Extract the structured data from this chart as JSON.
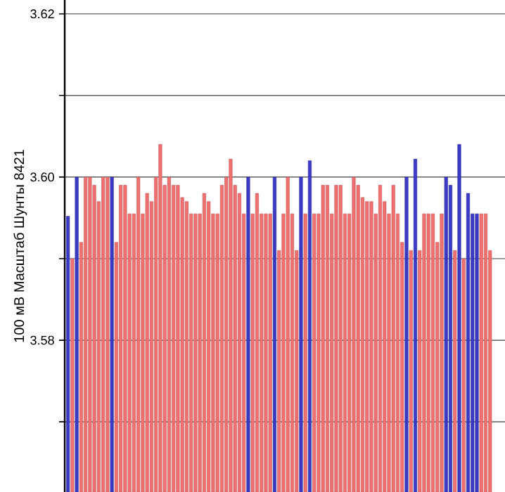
{
  "chart_data": {
    "type": "bar",
    "ylabel": "100 мВ Масштаб  Шунты 8421",
    "categories": [
      null,
      null,
      null,
      null,
      null,
      null,
      null,
      null,
      null,
      null,
      null,
      null,
      null,
      null,
      null,
      null,
      null,
      null,
      null,
      null,
      null,
      null,
      null,
      null,
      null,
      null,
      null,
      null,
      null,
      null,
      null,
      null,
      null,
      null,
      null,
      null,
      null,
      null,
      null,
      null,
      null,
      null,
      null,
      null,
      null,
      null,
      null,
      null,
      null,
      null,
      null,
      null,
      null,
      null,
      null,
      null,
      null,
      null,
      null,
      null,
      null,
      null,
      null,
      null,
      null,
      null,
      null,
      null,
      null,
      null,
      null,
      null,
      null,
      null,
      null,
      null,
      null,
      null,
      null,
      null,
      null,
      null,
      null,
      null,
      null,
      null,
      null,
      null,
      null,
      null,
      null,
      null,
      null,
      null,
      null,
      null,
      null
    ],
    "values": [
      3.5952,
      3.59,
      3.6,
      3.592,
      3.6,
      3.6,
      3.599,
      3.597,
      3.6,
      3.6,
      3.6,
      3.592,
      3.599,
      3.599,
      3.5955,
      3.5955,
      3.6,
      3.5955,
      3.598,
      3.597,
      3.6,
      3.604,
      3.599,
      3.6,
      3.599,
      3.599,
      3.5975,
      3.597,
      3.5955,
      3.5955,
      3.5955,
      3.598,
      3.597,
      3.5955,
      3.5955,
      3.599,
      3.6,
      3.6022,
      3.599,
      3.598,
      3.5955,
      3.6,
      3.5955,
      3.598,
      3.5955,
      3.5955,
      3.5955,
      3.6,
      3.591,
      3.5955,
      3.6,
      3.5955,
      3.591,
      3.6,
      3.5955,
      3.602,
      3.5955,
      3.5955,
      3.599,
      3.599,
      3.5955,
      3.599,
      3.599,
      3.5955,
      3.5955,
      3.6,
      3.599,
      3.5975,
      3.597,
      3.597,
      3.5955,
      3.599,
      3.597,
      3.5955,
      3.599,
      3.5955,
      3.592,
      3.6,
      3.591,
      3.6022,
      3.591,
      3.5955,
      3.5955,
      3.5955,
      3.592,
      3.5955,
      3.6,
      3.599,
      3.591,
      3.604,
      3.59,
      3.598,
      3.5955,
      3.5955,
      3.5955,
      3.5955,
      3.591
    ],
    "colors": [
      "#3a3ac4",
      "#f07070",
      "#3a3ac4",
      "#f07070",
      "#f07070",
      "#f07070",
      "#f07070",
      "#f07070",
      "#f07070",
      "#f07070",
      "#3a3ac4",
      "#f07070",
      "#f07070",
      "#f07070",
      "#f07070",
      "#f07070",
      "#f07070",
      "#f07070",
      "#f07070",
      "#f07070",
      "#f07070",
      "#f07070",
      "#f07070",
      "#f07070",
      "#f07070",
      "#f07070",
      "#f07070",
      "#f07070",
      "#f07070",
      "#f07070",
      "#f07070",
      "#f07070",
      "#f07070",
      "#f07070",
      "#f07070",
      "#f07070",
      "#f07070",
      "#f07070",
      "#f07070",
      "#f07070",
      "#f07070",
      "#3a3ac4",
      "#f07070",
      "#f07070",
      "#f07070",
      "#f07070",
      "#f07070",
      "#3a3ac4",
      "#f07070",
      "#f07070",
      "#f07070",
      "#f07070",
      "#f07070",
      "#3a3ac4",
      "#f07070",
      "#3a3ac4",
      "#f07070",
      "#f07070",
      "#f07070",
      "#f07070",
      "#f07070",
      "#f07070",
      "#f07070",
      "#f07070",
      "#f07070",
      "#f07070",
      "#f07070",
      "#f07070",
      "#f07070",
      "#f07070",
      "#f07070",
      "#f07070",
      "#f07070",
      "#f07070",
      "#f07070",
      "#f07070",
      "#f07070",
      "#3a3ac4",
      "#f07070",
      "#3a3ac4",
      "#f07070",
      "#f07070",
      "#f07070",
      "#f07070",
      "#f07070",
      "#f07070",
      "#3a3ac4",
      "#3a3ac4",
      "#f07070",
      "#3a3ac4",
      "#f07070",
      "#3a3ac4",
      "#3a3ac4",
      "#3a3ac4",
      "#f07070",
      "#f07070",
      "#f07070"
    ],
    "ylim": [
      3.5614,
      3.6217
    ],
    "yticks": [
      {
        "value": 3.57,
        "label": null
      },
      3.58,
      {
        "value": 3.59,
        "label": null
      },
      {
        "value": 3.6,
        "label": "3.60"
      },
      {
        "value": 3.61,
        "label": null
      },
      3.62
    ],
    "tick_labels": "y",
    "grid": "y"
  }
}
